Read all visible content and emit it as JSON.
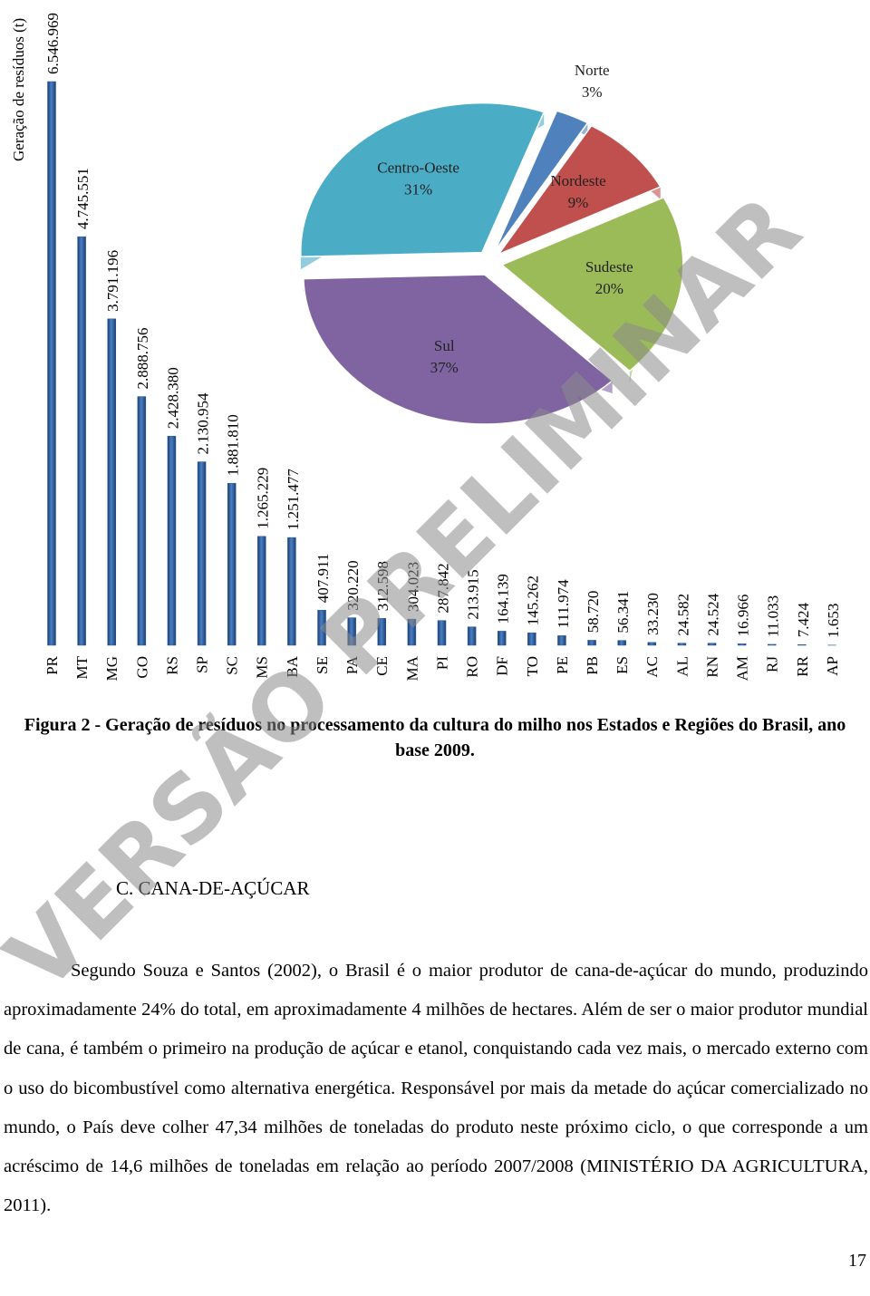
{
  "chart_data": [
    {
      "type": "bar",
      "orientation": "vertical",
      "y_label": "Geração de resíduos (t)",
      "color": "#2b5a9b",
      "categories": [
        "PR",
        "MT",
        "MG",
        "GO",
        "RS",
        "SP",
        "SC",
        "MS",
        "BA",
        "SE",
        "PA",
        "CE",
        "MA",
        "PI",
        "RO",
        "DF",
        "TO",
        "PE",
        "PB",
        "ES",
        "AC",
        "AL",
        "RN",
        "AM",
        "RJ",
        "RR",
        "AP"
      ],
      "values": [
        6546969,
        4745551,
        3791196,
        2888756,
        2428380,
        2130954,
        1881810,
        1265229,
        1251477,
        407911,
        320220,
        312598,
        304023,
        287842,
        213915,
        164139,
        145262,
        111974,
        58720,
        56341,
        33230,
        24582,
        24524,
        16966,
        11033,
        7424,
        1653
      ],
      "value_labels": [
        "6.546.969",
        "4.745.551",
        "3.791.196",
        "2.888.756",
        "2.428.380",
        "2.130.954",
        "1.881.810",
        "1.265.229",
        "1.251.477",
        "407.911",
        "320.220",
        "312.598",
        "304.023",
        "287.842",
        "213.915",
        "164.139",
        "145.262",
        "111.974",
        "58.720",
        "56.341",
        "33.230",
        "24.582",
        "24.524",
        "16.966",
        "11.033",
        "7.424",
        "1.653"
      ]
    },
    {
      "type": "pie",
      "categories": [
        "Norte",
        "Nordeste",
        "Sudeste",
        "Sul",
        "Centro-Oeste"
      ],
      "values": [
        3,
        9,
        20,
        37,
        31
      ],
      "value_labels": [
        "3%",
        "9%",
        "20%",
        "37%",
        "31%"
      ],
      "colors": [
        "#4f81bd",
        "#c0504d",
        "#9bbb59",
        "#8064a2",
        "#4bacc6"
      ]
    }
  ],
  "caption": "Figura 2 - Geração de resíduos no processamento da cultura do milho nos Estados e Regiões do Brasil, ano base 2009.",
  "heading": "C. CANA-DE-AÇÚCAR",
  "paragraph": "Segundo Souza e Santos (2002), o Brasil é o maior produtor de cana-de-açúcar do mundo, produzindo aproximadamente 24% do total, em aproximadamente 4 milhões de hectares. Além de ser o maior produtor mundial de cana, é também o primeiro na produção de açúcar e etanol, conquistando cada vez mais, o mercado externo com o uso do bicombustível como alternativa energética. Responsável por mais da metade do açúcar comercializado no mundo, o País deve colher 47,34 milhões de toneladas do produto neste próximo ciclo, o que corresponde a um acréscimo de 14,6 milhões de toneladas em relação ao período 2007/2008 (MINISTÉRIO DA AGRICULTURA, 2011).",
  "page_number": "17",
  "watermark": "VERSÃO PRELIMINAR"
}
